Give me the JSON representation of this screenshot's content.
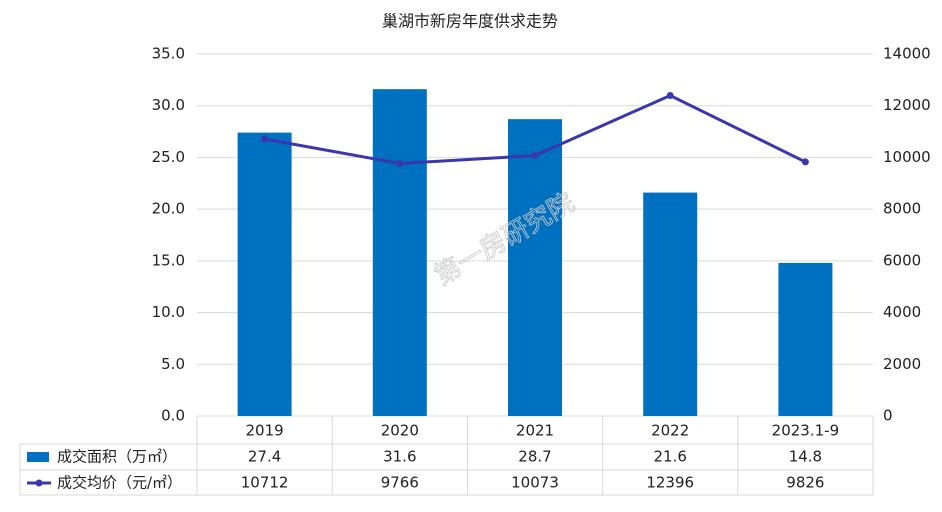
{
  "chart_data": {
    "type": "bar-line",
    "title": "巢湖市新房年度供求走势",
    "watermark": "第一房研究院",
    "categories": [
      "2019",
      "2020",
      "2021",
      "2022",
      "2023.1-9"
    ],
    "series": [
      {
        "name": "成交面积（万㎡）",
        "type": "bar",
        "color": "#0070c0",
        "values": [
          27.4,
          31.6,
          28.7,
          21.6,
          14.8
        ]
      },
      {
        "name": "成交均价（元/㎡）",
        "type": "line",
        "axis": "y2",
        "color": "#3a36b0",
        "values": [
          10712,
          9766,
          10073,
          12396,
          9826
        ]
      }
    ],
    "ylim": [
      0,
      35
    ],
    "yticks": [
      {
        "value": 0,
        "label": "0.0"
      },
      {
        "value": 5,
        "label": "5.0"
      },
      {
        "value": 10,
        "label": "10.0"
      },
      {
        "value": 15,
        "label": "15.0"
      },
      {
        "value": 20,
        "label": "20.0"
      },
      {
        "value": 25,
        "label": "25.0"
      },
      {
        "value": 30,
        "label": "30.0"
      },
      {
        "value": 35,
        "label": "35.0"
      }
    ],
    "y2lim": [
      0,
      14000
    ],
    "y2ticks": [
      0,
      2000,
      4000,
      6000,
      8000,
      10000,
      12000,
      14000
    ],
    "grid": true
  }
}
